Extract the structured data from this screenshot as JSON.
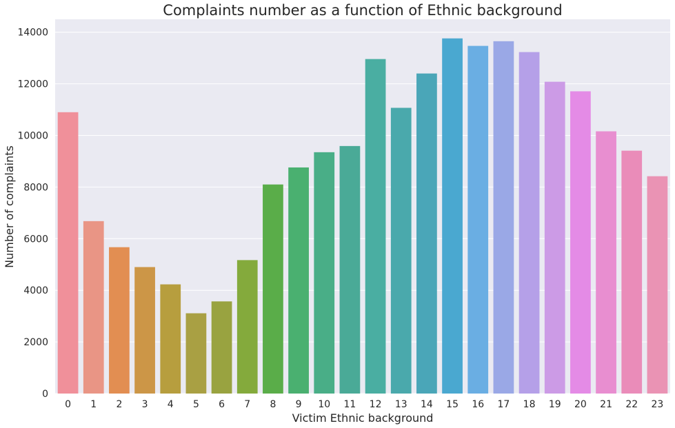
{
  "chart_data": {
    "type": "bar",
    "title": "Complaints number as a function of Ethnic background",
    "xlabel": "Victim Ethnic background",
    "ylabel": "Number of complaints",
    "categories": [
      "0",
      "1",
      "2",
      "3",
      "4",
      "5",
      "6",
      "7",
      "8",
      "9",
      "10",
      "11",
      "12",
      "13",
      "14",
      "15",
      "16",
      "17",
      "18",
      "19",
      "20",
      "21",
      "22",
      "23"
    ],
    "values": [
      10900,
      6680,
      5670,
      4900,
      4230,
      3110,
      3570,
      5170,
      8100,
      8760,
      9350,
      9590,
      12960,
      11070,
      12400,
      13760,
      13470,
      13650,
      13230,
      12080,
      11710,
      10160,
      9410,
      8420
    ],
    "ylim": [
      0,
      14500
    ],
    "yticks": [
      0,
      2000,
      4000,
      6000,
      8000,
      10000,
      12000,
      14000
    ],
    "grid": true,
    "background": "#eaeaf2",
    "colors": [
      "#f0909a",
      "#e99585",
      "#e28e52",
      "#cc9647",
      "#b79e3e",
      "#a9a043",
      "#99a340",
      "#84aa3c",
      "#5aad49",
      "#4ab070",
      "#49ae87",
      "#4aaa97",
      "#4aaea2",
      "#4aa9ac",
      "#4aa6b8",
      "#4aa8d0",
      "#6aaee3",
      "#9aa8e6",
      "#b5a0e8",
      "#cc9be6",
      "#e48be6",
      "#e88ed0",
      "#ea8cb9",
      "#ea93b4"
    ]
  }
}
